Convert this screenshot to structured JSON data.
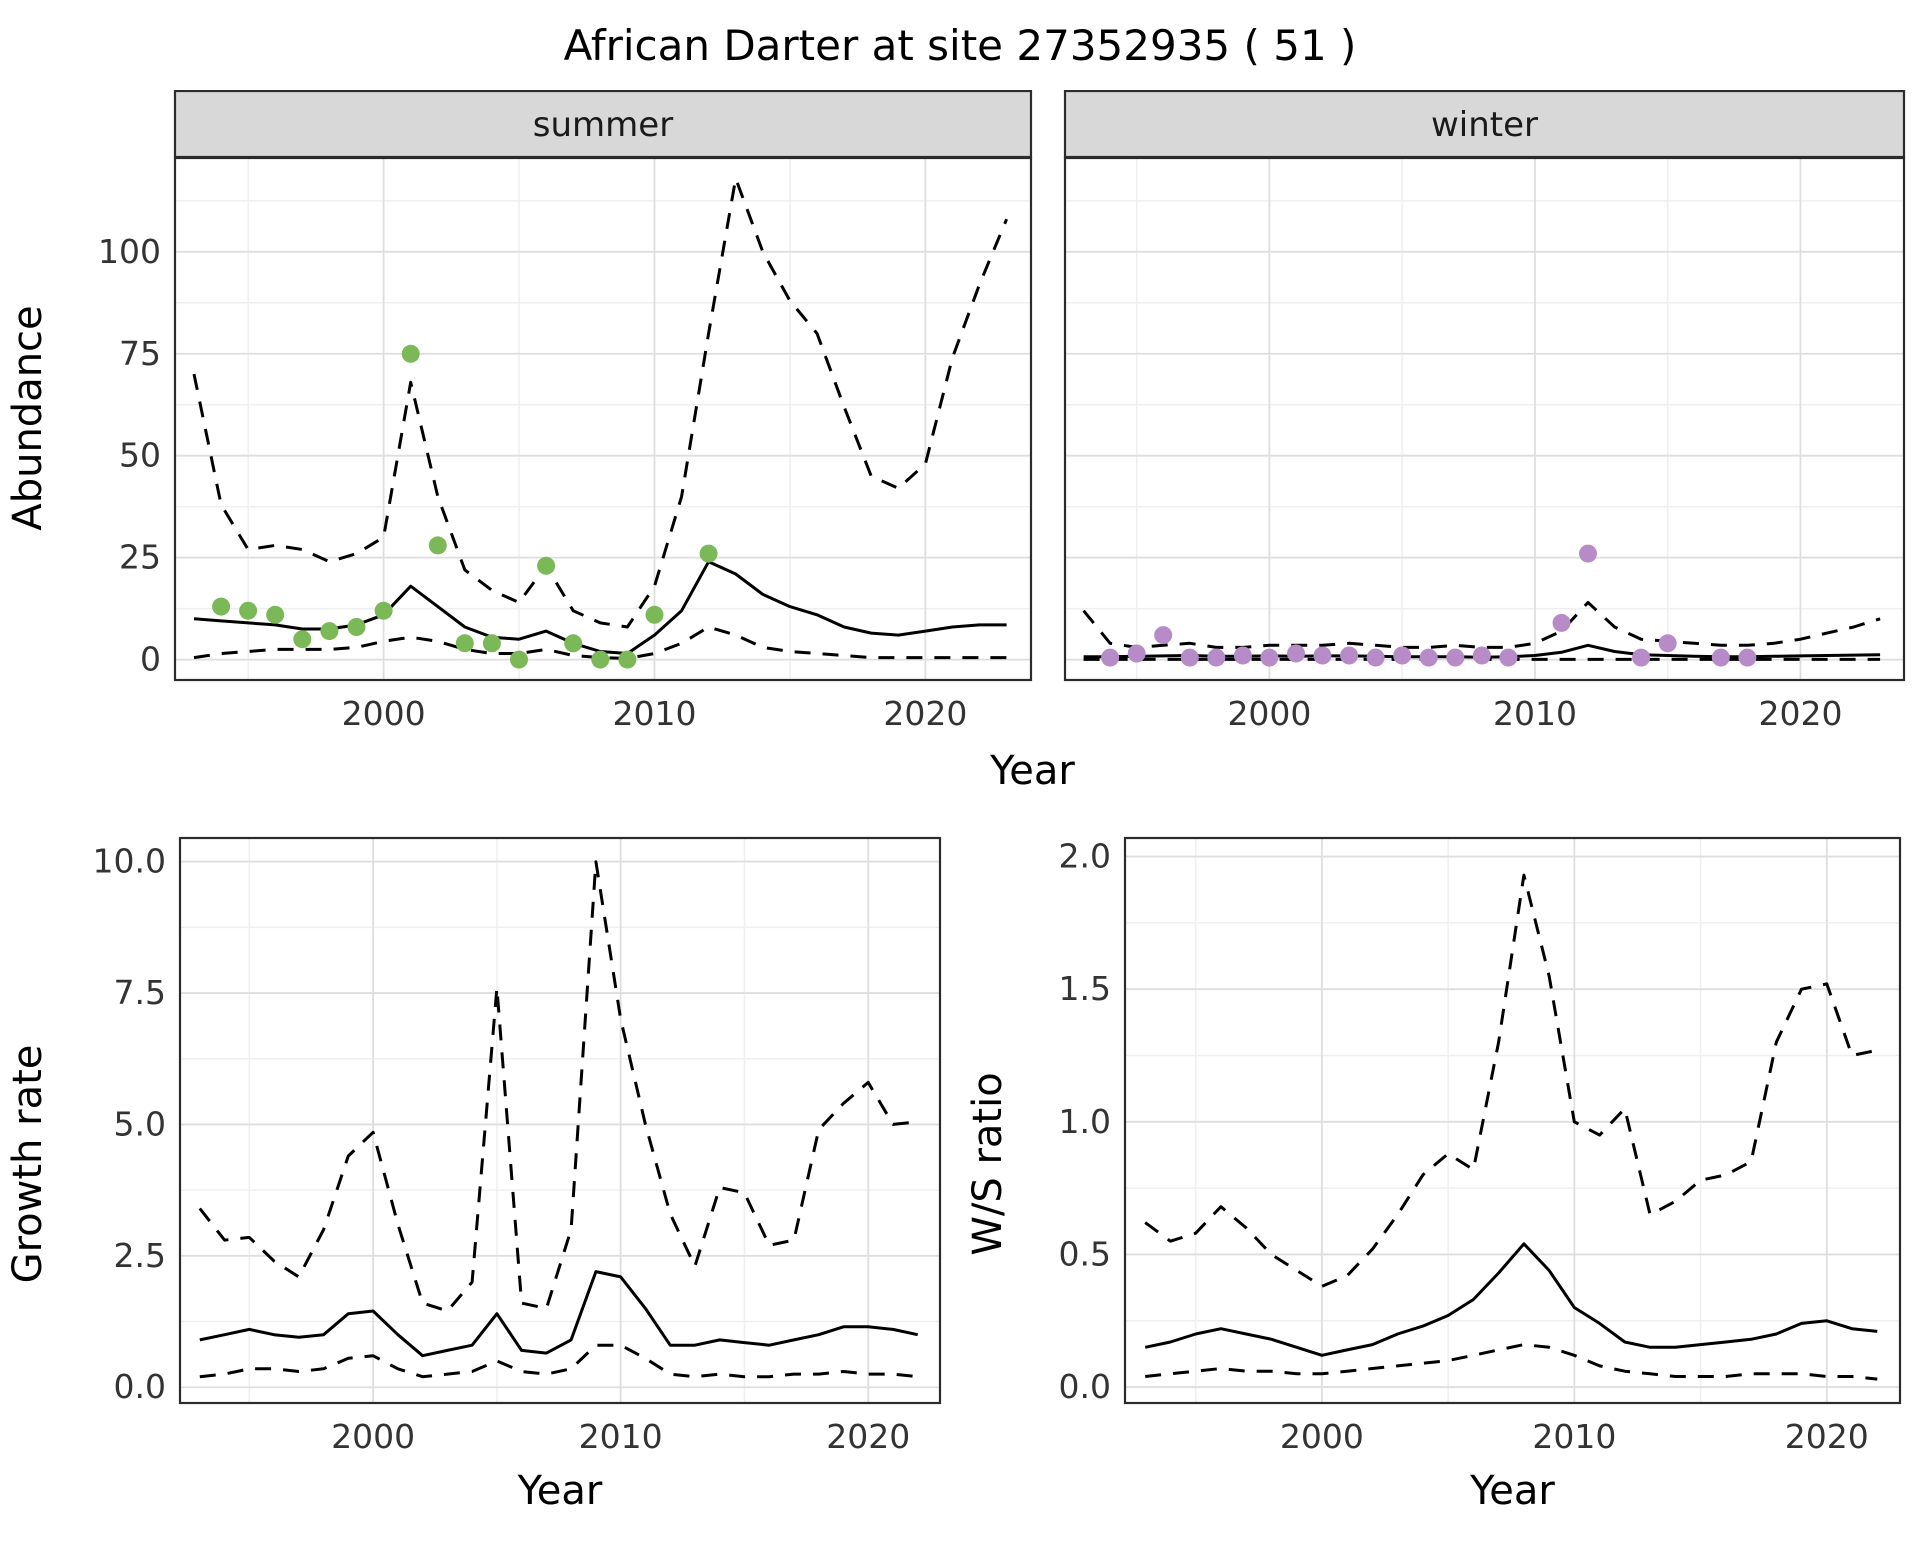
{
  "title": "African Darter at site 27352935 ( 51 )",
  "labels": {
    "x_axis": "Year",
    "abundance": "Abundance",
    "growth": "Growth rate",
    "ws": "W/S ratio",
    "facet_summer": "summer",
    "facet_winter": "winter"
  },
  "colors": {
    "summer_point": "#7bb857",
    "winter_point": "#b78bc8",
    "line": "#000000",
    "strip_bg": "#d8d8d8",
    "strip_text": "#1a1a1a",
    "panel_border": "#2b2b2b",
    "grid_major": "#dedede",
    "grid_minor": "#efefef",
    "tick_text": "#333333"
  },
  "chart_data": [
    {
      "id": "summer",
      "type": "line",
      "facet": "summer",
      "title": "African Darter at site 27352935 ( 51 )",
      "xlabel": "Year",
      "ylabel": "Abundance",
      "legend": "none",
      "grid": "on",
      "xlim": [
        1992.3,
        2023.9
      ],
      "ylim": [
        -5,
        123
      ],
      "xticks": [
        2000,
        2010,
        2020
      ],
      "xtick_labels": [
        "2000",
        "2010",
        "2020"
      ],
      "yticks": [
        0,
        25,
        50,
        75,
        100
      ],
      "ytick_labels": [
        "0",
        "25",
        "50",
        "75",
        "100"
      ],
      "x": [
        1993,
        1994,
        1995,
        1996,
        1997,
        1998,
        1999,
        2000,
        2001,
        2002,
        2003,
        2004,
        2005,
        2006,
        2007,
        2008,
        2009,
        2010,
        2011,
        2012,
        2013,
        2014,
        2015,
        2016,
        2017,
        2018,
        2019,
        2020,
        2021,
        2022,
        2023
      ],
      "series": [
        {
          "name": "fit",
          "style": "solid",
          "values": [
            10,
            9.5,
            9,
            8.5,
            7.5,
            7.5,
            8.5,
            11,
            18,
            13,
            8,
            5.5,
            5,
            7,
            4,
            2,
            1.5,
            6,
            12,
            24,
            21,
            16,
            13,
            11,
            8,
            6.5,
            6,
            7,
            8,
            8.5,
            8.5
          ]
        },
        {
          "name": "upper-ci",
          "style": "dashed",
          "values": [
            70,
            38,
            27,
            28,
            27,
            24,
            26,
            30,
            68,
            40,
            22,
            17,
            14,
            23,
            12,
            9,
            8,
            18,
            40,
            80,
            118,
            100,
            88,
            80,
            62,
            45,
            42,
            48,
            74,
            92,
            108
          ]
        },
        {
          "name": "lower-ci",
          "style": "dashed",
          "values": [
            0.5,
            1.5,
            2,
            2.5,
            2.5,
            2.5,
            3,
            4.5,
            5.5,
            4.5,
            2.5,
            1.5,
            1.5,
            2.5,
            1,
            0.5,
            0.3,
            1.5,
            4,
            8,
            6,
            3,
            2,
            1.5,
            1,
            0.5,
            0.5,
            0.5,
            0.5,
            0.5,
            0.5
          ]
        }
      ],
      "points": {
        "name": "observed",
        "color_key": "summer_point",
        "x": [
          1994,
          1995,
          1996,
          1997,
          1998,
          1999,
          2000,
          2001,
          2002,
          2003,
          2004,
          2005,
          2006,
          2007,
          2008,
          2009,
          2010,
          2012
        ],
        "y": [
          13,
          12,
          11,
          5,
          7,
          8,
          12,
          75,
          28,
          4,
          4,
          0,
          23,
          4,
          0,
          0,
          11,
          26
        ]
      }
    },
    {
      "id": "winter",
      "type": "line",
      "facet": "winter",
      "xlabel": "Year",
      "ylabel": "Abundance",
      "legend": "none",
      "grid": "on",
      "xlim": [
        1992.3,
        2023.9
      ],
      "ylim": [
        -5,
        123
      ],
      "xticks": [
        2000,
        2010,
        2020
      ],
      "xtick_labels": [
        "2000",
        "2010",
        "2020"
      ],
      "yticks": [
        0,
        25,
        50,
        75,
        100
      ],
      "ytick_labels": [
        "0",
        "25",
        "50",
        "75",
        "100"
      ],
      "x": [
        1993,
        1994,
        1995,
        1996,
        1997,
        1998,
        1999,
        2000,
        2001,
        2002,
        2003,
        2004,
        2005,
        2006,
        2007,
        2008,
        2009,
        2010,
        2011,
        2012,
        2013,
        2014,
        2015,
        2016,
        2017,
        2018,
        2019,
        2020,
        2021,
        2022,
        2023
      ],
      "series": [
        {
          "name": "fit",
          "style": "solid",
          "values": [
            0.7,
            0.7,
            0.8,
            0.9,
            1,
            0.8,
            0.8,
            0.9,
            0.8,
            0.9,
            0.9,
            0.8,
            0.7,
            0.7,
            0.7,
            0.6,
            0.7,
            1,
            1.8,
            3.5,
            2,
            1.2,
            1,
            0.8,
            0.7,
            0.7,
            0.8,
            0.9,
            1,
            1.1,
            1.2
          ]
        },
        {
          "name": "upper-ci",
          "style": "dashed",
          "values": [
            12,
            4,
            3,
            3.5,
            4,
            3,
            3,
            3.5,
            3.5,
            3.5,
            4,
            3.5,
            3,
            3,
            3.5,
            3,
            3,
            4,
            7,
            14,
            8,
            5,
            4.5,
            4,
            3.5,
            3.5,
            4,
            5,
            6.5,
            8,
            10
          ]
        },
        {
          "name": "lower-ci",
          "style": "dashed",
          "values": [
            0.05,
            0.05,
            0.05,
            0.05,
            0.05,
            0.05,
            0.05,
            0.05,
            0.05,
            0.05,
            0.05,
            0.05,
            0.05,
            0.05,
            0.05,
            0.05,
            0.05,
            0.05,
            0.05,
            0.05,
            0.05,
            0.05,
            0.05,
            0.05,
            0.05,
            0.05,
            0.05,
            0.05,
            0.05,
            0.05,
            0.05
          ]
        }
      ],
      "points": {
        "name": "observed",
        "color_key": "winter_point",
        "x": [
          1994,
          1995,
          1996,
          1997,
          1998,
          1999,
          2000,
          2001,
          2002,
          2003,
          2004,
          2005,
          2006,
          2007,
          2008,
          2009,
          2011,
          2012,
          2014,
          2015,
          2017,
          2018
        ],
        "y": [
          0.5,
          1.5,
          6,
          0.5,
          0.5,
          1,
          0.5,
          1.5,
          1,
          1,
          0.5,
          1,
          0.5,
          0.5,
          1,
          0.5,
          9,
          26,
          0.5,
          4,
          0.5,
          0.5
        ]
      }
    },
    {
      "id": "growth",
      "type": "line",
      "xlabel": "Year",
      "ylabel": "Growth rate",
      "legend": "none",
      "grid": "on",
      "xlim": [
        1992.2,
        2022.9
      ],
      "ylim": [
        -0.3,
        10.45
      ],
      "xticks": [
        2000,
        2010,
        2020
      ],
      "xtick_labels": [
        "2000",
        "2010",
        "2020"
      ],
      "yticks": [
        0,
        2.5,
        5,
        7.5,
        10
      ],
      "ytick_labels": [
        "0.0",
        "2.5",
        "5.0",
        "7.5",
        "10.0"
      ],
      "x": [
        1993,
        1994,
        1995,
        1996,
        1997,
        1998,
        1999,
        2000,
        2001,
        2002,
        2003,
        2004,
        2005,
        2006,
        2007,
        2008,
        2009,
        2010,
        2011,
        2012,
        2013,
        2014,
        2015,
        2016,
        2017,
        2018,
        2019,
        2020,
        2021,
        2022
      ],
      "series": [
        {
          "name": "fit",
          "style": "solid",
          "values": [
            0.9,
            1,
            1.1,
            1,
            0.95,
            1,
            1.4,
            1.45,
            1,
            0.6,
            0.7,
            0.8,
            1.4,
            0.7,
            0.65,
            0.9,
            2.2,
            2.1,
            1.5,
            0.8,
            0.8,
            0.9,
            0.85,
            0.8,
            0.9,
            1,
            1.15,
            1.15,
            1.1,
            1
          ]
        },
        {
          "name": "upper-ci",
          "style": "dashed",
          "values": [
            3.4,
            2.8,
            2.85,
            2.4,
            2.1,
            3,
            4.4,
            4.85,
            3.1,
            1.6,
            1.45,
            2,
            7.6,
            1.6,
            1.5,
            3,
            10,
            7,
            5,
            3.3,
            2.3,
            3.8,
            3.7,
            2.7,
            2.8,
            4.9,
            5.4,
            5.8,
            5,
            5.05
          ]
        },
        {
          "name": "lower-ci",
          "style": "dashed",
          "values": [
            0.2,
            0.25,
            0.35,
            0.35,
            0.3,
            0.35,
            0.55,
            0.6,
            0.35,
            0.2,
            0.25,
            0.3,
            0.5,
            0.3,
            0.25,
            0.35,
            0.8,
            0.8,
            0.55,
            0.25,
            0.2,
            0.25,
            0.2,
            0.2,
            0.25,
            0.25,
            0.3,
            0.25,
            0.25,
            0.2
          ]
        }
      ]
    },
    {
      "id": "ws",
      "type": "line",
      "xlabel": "Year",
      "ylabel": "W/S ratio",
      "legend": "none",
      "grid": "on",
      "xlim": [
        1992.2,
        2022.9
      ],
      "ylim": [
        -0.06,
        2.07
      ],
      "xticks": [
        2000,
        2010,
        2020
      ],
      "xtick_labels": [
        "2000",
        "2010",
        "2020"
      ],
      "yticks": [
        0,
        0.5,
        1,
        1.5,
        2
      ],
      "ytick_labels": [
        "0.0",
        "0.5",
        "1.0",
        "1.5",
        "2.0"
      ],
      "x": [
        1993,
        1994,
        1995,
        1996,
        1997,
        1998,
        1999,
        2000,
        2001,
        2002,
        2003,
        2004,
        2005,
        2006,
        2007,
        2008,
        2009,
        2010,
        2011,
        2012,
        2013,
        2014,
        2015,
        2016,
        2017,
        2018,
        2019,
        2020,
        2021,
        2022
      ],
      "series": [
        {
          "name": "fit",
          "style": "solid",
          "values": [
            0.15,
            0.17,
            0.2,
            0.22,
            0.2,
            0.18,
            0.15,
            0.12,
            0.14,
            0.16,
            0.2,
            0.23,
            0.27,
            0.33,
            0.43,
            0.54,
            0.44,
            0.3,
            0.24,
            0.17,
            0.15,
            0.15,
            0.16,
            0.17,
            0.18,
            0.2,
            0.24,
            0.25,
            0.22,
            0.21
          ]
        },
        {
          "name": "upper-ci",
          "style": "dashed",
          "values": [
            0.62,
            0.55,
            0.58,
            0.68,
            0.6,
            0.5,
            0.44,
            0.38,
            0.42,
            0.52,
            0.65,
            0.8,
            0.88,
            0.82,
            1.3,
            1.93,
            1.55,
            1,
            0.95,
            1.05,
            0.65,
            0.7,
            0.78,
            0.8,
            0.85,
            1.3,
            1.5,
            1.52,
            1.25,
            1.27
          ]
        },
        {
          "name": "lower-ci",
          "style": "dashed",
          "values": [
            0.04,
            0.05,
            0.06,
            0.07,
            0.06,
            0.06,
            0.05,
            0.05,
            0.06,
            0.07,
            0.08,
            0.09,
            0.1,
            0.12,
            0.14,
            0.16,
            0.15,
            0.12,
            0.08,
            0.06,
            0.05,
            0.04,
            0.04,
            0.04,
            0.05,
            0.05,
            0.05,
            0.04,
            0.04,
            0.03
          ]
        }
      ]
    }
  ]
}
